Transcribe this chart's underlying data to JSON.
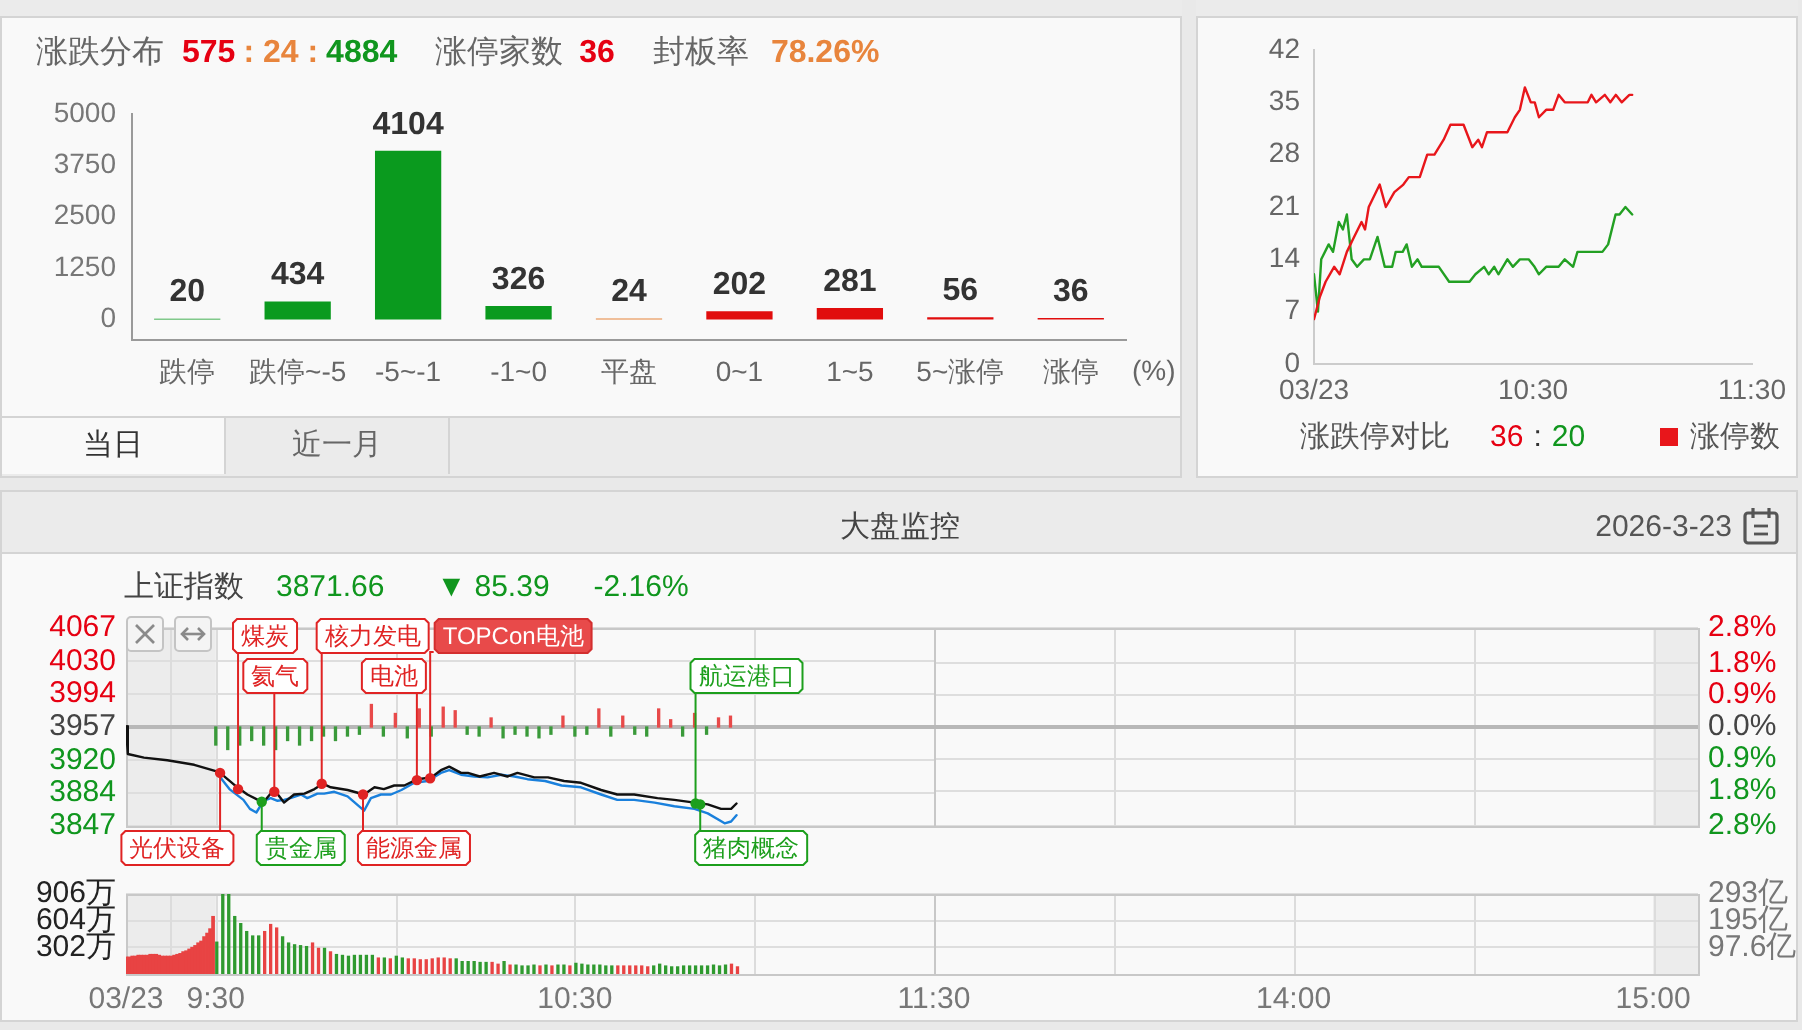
{
  "chart_data": [
    {
      "type": "bar",
      "categories": [
        "跌停",
        "跌停~-5",
        "-5~-1",
        "-1~0",
        "平盘",
        "0~1",
        "1~5",
        "5~涨停",
        "涨停"
      ],
      "values": [
        20,
        434,
        4104,
        326,
        24,
        202,
        281,
        56,
        36
      ],
      "colors": [
        "#0a9a1e",
        "#0a9a1e",
        "#0a9a1e",
        "#0a9a1e",
        "#e8853d",
        "#e10d0d",
        "#e10d0d",
        "#e10d0d",
        "#e10d0d"
      ],
      "xlabel": "(%)",
      "ylim": [
        -500,
        5000
      ],
      "yticks": [
        0,
        1250,
        2500,
        3750,
        5000
      ],
      "data_labels": true,
      "annotations": [
        "涨跌分布",
        "575",
        ": 24 :",
        "4884",
        "涨停家数",
        "36",
        "封板率",
        "78.26%",
        "当日",
        "近一月"
      ]
    },
    {
      "type": "line",
      "series": [
        {
          "name": "涨停数",
          "color": "#e8161b",
          "x": [
            9.5,
            9.527,
            9.553,
            9.592,
            9.617,
            9.65,
            9.683,
            9.717,
            9.733,
            9.75,
            9.8,
            9.828,
            9.867,
            9.908,
            9.933,
            9.983,
            10.017,
            10.05,
            10.092,
            10.123,
            10.183,
            10.223,
            10.25,
            10.267,
            10.29,
            10.383,
            10.417,
            10.44,
            10.463,
            10.49,
            10.508,
            10.527,
            10.56,
            10.592,
            10.617,
            10.645,
            10.75,
            10.767,
            10.788,
            10.828,
            10.853,
            10.878,
            10.905,
            10.94,
            10.953
          ],
          "values": [
            6,
            9,
            11,
            13,
            12,
            15,
            17,
            19,
            18,
            21,
            24,
            21,
            23,
            24,
            25,
            25,
            28,
            28,
            30,
            32,
            32,
            29,
            30,
            29,
            31,
            31,
            33,
            34,
            37,
            35,
            35,
            33,
            34,
            34,
            36,
            35,
            35,
            36,
            35,
            36,
            35,
            36,
            35,
            36,
            36
          ]
        },
        {
          "color": "#23a023",
          "x": [
            9.5,
            9.518,
            9.533,
            9.567,
            9.587,
            9.613,
            9.632,
            9.65,
            9.672,
            9.697,
            9.728,
            9.755,
            9.79,
            9.823,
            9.857,
            9.873,
            9.905,
            9.923,
            9.947,
            9.973,
            9.992,
            10.07,
            10.117,
            10.21,
            10.237,
            10.277,
            10.298,
            10.323,
            10.342,
            10.383,
            10.408,
            10.44,
            10.48,
            10.507,
            10.527,
            10.56,
            10.617,
            10.645,
            10.683,
            10.703,
            10.817,
            10.843,
            10.877,
            10.895,
            10.922,
            10.953
          ],
          "values": [
            12,
            7,
            14,
            16,
            15,
            19,
            18,
            20,
            14,
            13,
            14,
            14,
            17,
            13,
            13,
            15,
            15,
            16,
            13,
            14,
            13,
            13,
            11,
            11,
            12,
            13,
            12,
            13,
            12,
            14,
            13,
            14,
            14,
            13,
            12,
            13,
            13,
            14,
            13,
            15,
            15,
            16,
            20,
            20,
            21,
            20
          ]
        }
      ],
      "xlim": [
        9.5,
        11.5
      ],
      "xticks": [
        {
          "value": 9.5,
          "label": "03/23"
        },
        {
          "value": 10.5,
          "label": "10:30"
        },
        {
          "value": 11.5,
          "label": "11:30"
        }
      ],
      "ylim": [
        0,
        42
      ],
      "yticks": [
        0,
        7,
        14,
        21,
        28,
        35,
        42
      ],
      "legend": "bottom right",
      "annotations": [
        "涨跌停对比",
        "36",
        ":",
        "20"
      ]
    },
    {
      "type": "line",
      "title": "大盘监控",
      "series": [
        {
          "color": "#111111",
          "x": [
            9.25,
            9.255,
            9.3,
            9.365,
            9.44,
            9.5,
            9.512,
            9.56,
            9.588,
            9.632,
            9.653,
            9.667,
            9.69,
            9.718,
            9.747,
            9.775,
            9.798,
            9.82,
            9.867,
            9.913,
            9.942,
            9.968,
            9.997,
            10.025,
            10.062,
            10.1,
            10.127,
            10.15,
            10.183,
            10.202,
            10.235,
            10.275,
            10.312,
            10.34,
            10.387,
            10.425,
            10.47,
            10.517,
            10.573,
            10.618,
            10.665,
            10.73,
            10.777,
            10.833,
            10.87,
            10.907,
            10.935,
            10.95
          ],
          "values": [
            3958,
            3927,
            3923,
            3920,
            3915,
            3908,
            3906,
            3890,
            3882,
            3873,
            3883,
            3885,
            3873,
            3882,
            3883,
            3888,
            3894,
            3890,
            3887,
            3882,
            3890,
            3888,
            3892,
            3892,
            3899,
            3901,
            3909,
            3913,
            3906,
            3906,
            3902,
            3906,
            3902,
            3906,
            3901,
            3901,
            3897,
            3895,
            3887,
            3882,
            3882,
            3878,
            3876,
            3873,
            3871,
            3866,
            3866,
            3872
          ]
        },
        {
          "color": "#1a80dc",
          "x": [
            9.503,
            9.538,
            9.577,
            9.595,
            9.613,
            9.633,
            9.653,
            9.672,
            9.69,
            9.708,
            9.737,
            9.755,
            9.783,
            9.802,
            9.83,
            9.867,
            9.913,
            9.932,
            9.96,
            9.988,
            10.017,
            10.053,
            10.09,
            10.127,
            10.15,
            10.183,
            10.22,
            10.257,
            10.295,
            10.332,
            10.368,
            10.417,
            10.463,
            10.517,
            10.573,
            10.618,
            10.665,
            10.722,
            10.777,
            10.833,
            10.87,
            10.917,
            10.935,
            10.95
          ],
          "values": [
            3906,
            3888,
            3876,
            3866,
            3862,
            3875,
            3878,
            3875,
            3876,
            3878,
            3882,
            3878,
            3883,
            3883,
            3885,
            3880,
            3864,
            3878,
            3882,
            3882,
            3887,
            3895,
            3897,
            3906,
            3909,
            3904,
            3902,
            3901,
            3904,
            3902,
            3899,
            3897,
            3892,
            3890,
            3882,
            3876,
            3876,
            3873,
            3869,
            3866,
            3861,
            3850,
            3852,
            3859
          ]
        },
        {
          "type": "bar",
          "x": [
            9.5,
            9.5333,
            9.5667,
            9.6,
            9.6333,
            9.6667,
            9.7,
            9.7333,
            9.7667,
            9.8,
            9.8333,
            9.8667,
            9.9,
            9.9333,
            9.9667,
            10,
            10.0333,
            10.0667,
            10.1,
            10.1333,
            10.1667,
            10.2,
            10.2333,
            10.2667,
            10.3,
            10.3333,
            10.3667,
            10.4,
            10.4333,
            10.4667,
            10.5,
            10.5333,
            10.5667,
            10.6,
            10.6333,
            10.6667,
            10.7,
            10.7333,
            10.7667,
            10.8,
            10.8333,
            10.8667,
            10.9,
            10.9333
          ],
          "base": [
            3957,
            3957,
            3957,
            3957,
            3957,
            3957,
            3957,
            3957,
            3957,
            3957,
            3957,
            3957,
            3957,
            3957,
            3957,
            3957,
            3957,
            3957,
            3957,
            3957,
            3957,
            3957,
            3957,
            3957,
            3957,
            3957,
            3957,
            3957,
            3957,
            3957,
            3957,
            3957,
            3957,
            3957,
            3957,
            3957,
            3957,
            3957,
            3957,
            3957,
            3957,
            3957,
            3957,
            3957
          ],
          "values": [
            -20,
            -25,
            -20,
            -15,
            -20,
            -25,
            -15,
            -20,
            -15,
            -10,
            -15,
            -10,
            -8,
            25,
            -10,
            15,
            -12,
            20,
            -10,
            22,
            18,
            -8,
            -10,
            10,
            -12,
            -8,
            -10,
            -12,
            -8,
            12,
            -10,
            -8,
            20,
            -10,
            12,
            -8,
            -10,
            20,
            8,
            -10,
            15,
            -8,
            10,
            12
          ],
          "colors": [
            "#3a9a3a",
            "#3a9a3a",
            "#3a9a3a",
            "#3a9a3a",
            "#3a9a3a",
            "#3a9a3a",
            "#3a9a3a",
            "#3a9a3a",
            "#3a9a3a",
            "#3a9a3a",
            "#3a9a3a",
            "#3a9a3a",
            "#3a9a3a",
            "#e84a4a",
            "#3a9a3a",
            "#e84a4a",
            "#3a9a3a",
            "#e84a4a",
            "#3a9a3a",
            "#e84a4a",
            "#e84a4a",
            "#3a9a3a",
            "#3a9a3a",
            "#e84a4a",
            "#3a9a3a",
            "#3a9a3a",
            "#3a9a3a",
            "#3a9a3a",
            "#3a9a3a",
            "#e84a4a",
            "#3a9a3a",
            "#3a9a3a",
            "#e84a4a",
            "#3a9a3a",
            "#e84a4a",
            "#3a9a3a",
            "#3a9a3a",
            "#e84a4a",
            "#e84a4a",
            "#3a9a3a",
            "#e84a4a",
            "#3a9a3a",
            "#e84a4a",
            "#e84a4a"
          ]
        }
      ],
      "xlim": [
        9.25,
        11.5
      ],
      "xticks": [
        {
          "value": 9.25,
          "label": null
        },
        {
          "value": 9.375,
          "label": null
        },
        {
          "value": 9.5,
          "label": null
        },
        {
          "value": 10,
          "label": null
        },
        {
          "value": 10.5,
          "label": null
        },
        {
          "value": 11,
          "label": null
        },
        {
          "value": 11.5,
          "label": null
        }
      ],
      "ylim": [
        3847,
        4067
      ],
      "yticks": [
        3847,
        3884,
        3920,
        3957,
        3994,
        4030,
        4067
      ],
      "grid": true,
      "tick_labels": "y",
      "ref_lines": [
        {
          "axis": "y",
          "value": 3957,
          "color": "#b8b8b8"
        }
      ],
      "bands": [
        {
          "axis": "x",
          "from": 9.25,
          "to": 9.5,
          "color": "#ececec"
        }
      ],
      "annotations": [
        "2026-3-23",
        "上证指数",
        "3871.66",
        "▼ 85.39",
        "-2.16%",
        {
          "text": "光伏设备",
          "x": 9.512,
          "y": 3906
        },
        {
          "text": "煤炭",
          "x": 9.562,
          "y": 3888
        },
        {
          "text": "贵金属",
          "x": 9.628,
          "y": 3874
        },
        {
          "text": "氦气",
          "x": 9.663,
          "y": 3885
        },
        {
          "text": "核力发电",
          "x": 9.795,
          "y": 3894
        },
        {
          "text": "能源金属",
          "x": 9.91,
          "y": 3882
        },
        {
          "text": "电池",
          "x": 10.06,
          "y": 3898
        },
        {
          "text": "TOPCon电池",
          "x": 10.097,
          "y": 3900
        },
        {
          "text": "航运港口",
          "x": 10.836,
          "y": 3872
        },
        {
          "text": "猪肉概念",
          "x": 10.849,
          "y": 3871
        }
      ]
    },
    {
      "type": "line",
      "xlim": [
        13,
        15.125
      ],
      "xticks": [
        {
          "value": 13.5,
          "label": null
        },
        {
          "value": 14,
          "label": null
        },
        {
          "value": 14.5,
          "label": null
        },
        {
          "value": 15,
          "label": null
        }
      ],
      "ylim": [
        -2.8,
        2.8
      ],
      "yticks": [
        {
          "value": -2.8,
          "label": "2.8%"
        },
        {
          "value": -1.8,
          "label": "1.8%"
        },
        {
          "value": -0.9,
          "label": "0.9%"
        },
        {
          "value": 0,
          "label": "0.0%"
        },
        {
          "value": 0.9,
          "label": "0.9%"
        },
        {
          "value": 1.8,
          "label": "1.8%"
        },
        {
          "value": 2.8,
          "label": "2.8%"
        }
      ],
      "grid": true,
      "tick_labels": "y",
      "ref_lines": [
        {
          "axis": "y",
          "value": 0,
          "color": "#b8b8b8"
        }
      ],
      "bands": [
        {
          "axis": "x",
          "from": 15,
          "to": 15.125,
          "color": "#ececec"
        }
      ]
    },
    {
      "type": "bar",
      "series": [
        {
          "color": "#e84343",
          "x": [
            9.2542,
            9.2625,
            9.2708,
            9.2792,
            9.2875,
            9.2958,
            9.3042,
            9.3125,
            9.3208,
            9.3292,
            9.3375,
            9.3458,
            9.3542,
            9.3625,
            9.3708,
            9.3792,
            9.3875,
            9.3958,
            9.4042,
            9.4125,
            9.4208,
            9.4292,
            9.4375,
            9.4458,
            9.4542,
            9.4625,
            9.4708,
            9.4792,
            9.4875,
            9.4958
          ],
          "values": [
            190,
            190,
            200,
            200,
            210,
            210,
            210,
            210,
            220,
            220,
            220,
            210,
            200,
            200,
            200,
            200,
            210,
            220,
            230,
            250,
            260,
            280,
            300,
            320,
            350,
            370,
            420,
            460,
            510,
            650
          ]
        },
        {
          "x": [
            9.5,
            9.5167,
            9.5333,
            9.55,
            9.5667,
            9.5833,
            9.6,
            9.6167,
            9.6333,
            9.65,
            9.6667,
            9.6833,
            9.7,
            9.7167,
            9.7333,
            9.75,
            9.7667,
            9.7833,
            9.8,
            9.8167,
            9.8333,
            9.85,
            9.8667,
            9.8833,
            9.9,
            9.9167,
            9.9333,
            9.95,
            9.9667,
            9.9833,
            10,
            10.0167,
            10.0333,
            10.05,
            10.0667,
            10.0833,
            10.1,
            10.1167,
            10.1333,
            10.15,
            10.1667,
            10.1833,
            10.2,
            10.2167,
            10.2333,
            10.25,
            10.2667,
            10.2833,
            10.3,
            10.3167,
            10.3333,
            10.35,
            10.3667,
            10.3833,
            10.4,
            10.4167,
            10.4333,
            10.45,
            10.4667,
            10.4833,
            10.5,
            10.5167,
            10.5333,
            10.55,
            10.5667,
            10.5833,
            10.6,
            10.6167,
            10.6333,
            10.65,
            10.6667,
            10.6833,
            10.7,
            10.7167,
            10.7333,
            10.75,
            10.7667,
            10.7833,
            10.8,
            10.8167,
            10.8333,
            10.85,
            10.8667,
            10.8833,
            10.9,
            10.9167,
            10.9333,
            10.95
          ],
          "values": [
            360,
            900,
            900,
            650,
            570,
            480,
            430,
            430,
            480,
            560,
            520,
            420,
            350,
            330,
            320,
            310,
            350,
            290,
            290,
            250,
            220,
            210,
            200,
            210,
            210,
            210,
            210,
            180,
            180,
            170,
            200,
            180,
            170,
            170,
            160,
            160,
            170,
            180,
            180,
            170,
            170,
            140,
            140,
            140,
            130,
            130,
            130,
            110,
            140,
            100,
            100,
            90,
            90,
            100,
            90,
            100,
            90,
            100,
            100,
            90,
            120,
            110,
            100,
            100,
            100,
            90,
            90,
            90,
            90,
            90,
            90,
            90,
            80,
            90,
            110,
            90,
            80,
            80,
            90,
            90,
            90,
            90,
            90,
            100,
            90,
            100,
            110,
            80
          ],
          "colors": [
            "#2f9a2f",
            "#2f9a2f",
            "#2f9a2f",
            "#2f9a2f",
            "#2f9a2f",
            "#2f9a2f",
            "#2f9a2f",
            "#2f9a2f",
            "#e84343",
            "#e84343",
            "#e84343",
            "#2f9a2f",
            "#2f9a2f",
            "#2f9a2f",
            "#2f9a2f",
            "#2f9a2f",
            "#e84343",
            "#e84343",
            "#2f9a2f",
            "#e84343",
            "#2f9a2f",
            "#2f9a2f",
            "#2f9a2f",
            "#2f9a2f",
            "#2f9a2f",
            "#2f9a2f",
            "#2f9a2f",
            "#e84343",
            "#2f9a2f",
            "#e84343",
            "#2f9a2f",
            "#2f9a2f",
            "#e84343",
            "#e84343",
            "#e84343",
            "#e84343",
            "#e84343",
            "#e84343",
            "#e84343",
            "#e84343",
            "#2f9a2f",
            "#2f9a2f",
            "#2f9a2f",
            "#2f9a2f",
            "#2f9a2f",
            "#2f9a2f",
            "#e84343",
            "#e84343",
            "#2f9a2f",
            "#e84343",
            "#2f9a2f",
            "#2f9a2f",
            "#2f9a2f",
            "#2f9a2f",
            "#e84343",
            "#2f9a2f",
            "#e84343",
            "#2f9a2f",
            "#2f9a2f",
            "#e84343",
            "#2f9a2f",
            "#2f9a2f",
            "#2f9a2f",
            "#2f9a2f",
            "#2f9a2f",
            "#2f9a2f",
            "#2f9a2f",
            "#e84343",
            "#e84343",
            "#e84343",
            "#e84343",
            "#e84343",
            "#e84343",
            "#2f9a2f",
            "#2f9a2f",
            "#2f9a2f",
            "#2f9a2f",
            "#2f9a2f",
            "#2f9a2f",
            "#2f9a2f",
            "#2f9a2f",
            "#2f9a2f",
            "#2f9a2f",
            "#2f9a2f",
            "#2f9a2f",
            "#2f9a2f",
            "#e84343",
            "#e84343"
          ]
        }
      ],
      "xlim": [
        9.25,
        11.5
      ],
      "xticks": [
        {
          "value": 9.25,
          "label": "03/23"
        },
        {
          "value": 9.375,
          "label": null
        },
        {
          "value": 9.5,
          "label": "9:30"
        },
        {
          "value": 10,
          "label": null
        },
        {
          "value": 10.5,
          "label": "10:30"
        },
        {
          "value": 11,
          "label": null
        },
        {
          "value": 11.5,
          "label": "11:30"
        }
      ],
      "ylim": [
        0,
        906
      ],
      "yticks": [
        {
          "value": 302,
          "label": "302万"
        },
        {
          "value": 604,
          "label": "604万"
        },
        {
          "value": 906,
          "label": "906万"
        }
      ],
      "grid": true,
      "bands": [
        {
          "axis": "x",
          "from": 9.25,
          "to": 9.5,
          "color": "#ececec"
        }
      ]
    },
    {
      "type": "bar",
      "xlim": [
        13,
        15.125
      ],
      "xticks": [
        {
          "value": 13.5,
          "label": null
        },
        {
          "value": 14,
          "label": "14:00"
        },
        {
          "value": 14.5,
          "label": null
        },
        {
          "value": 15,
          "label": "15:00"
        }
      ],
      "ylim": [
        0,
        293
      ],
      "yticks": [
        {
          "value": 97.6,
          "label": "97.6亿"
        },
        {
          "value": 195,
          "label": "195亿"
        },
        {
          "value": 293,
          "label": "293亿"
        }
      ],
      "grid": true,
      "bands": [
        {
          "axis": "x",
          "from": 15,
          "to": 15.125,
          "color": "#ececec"
        }
      ]
    }
  ]
}
